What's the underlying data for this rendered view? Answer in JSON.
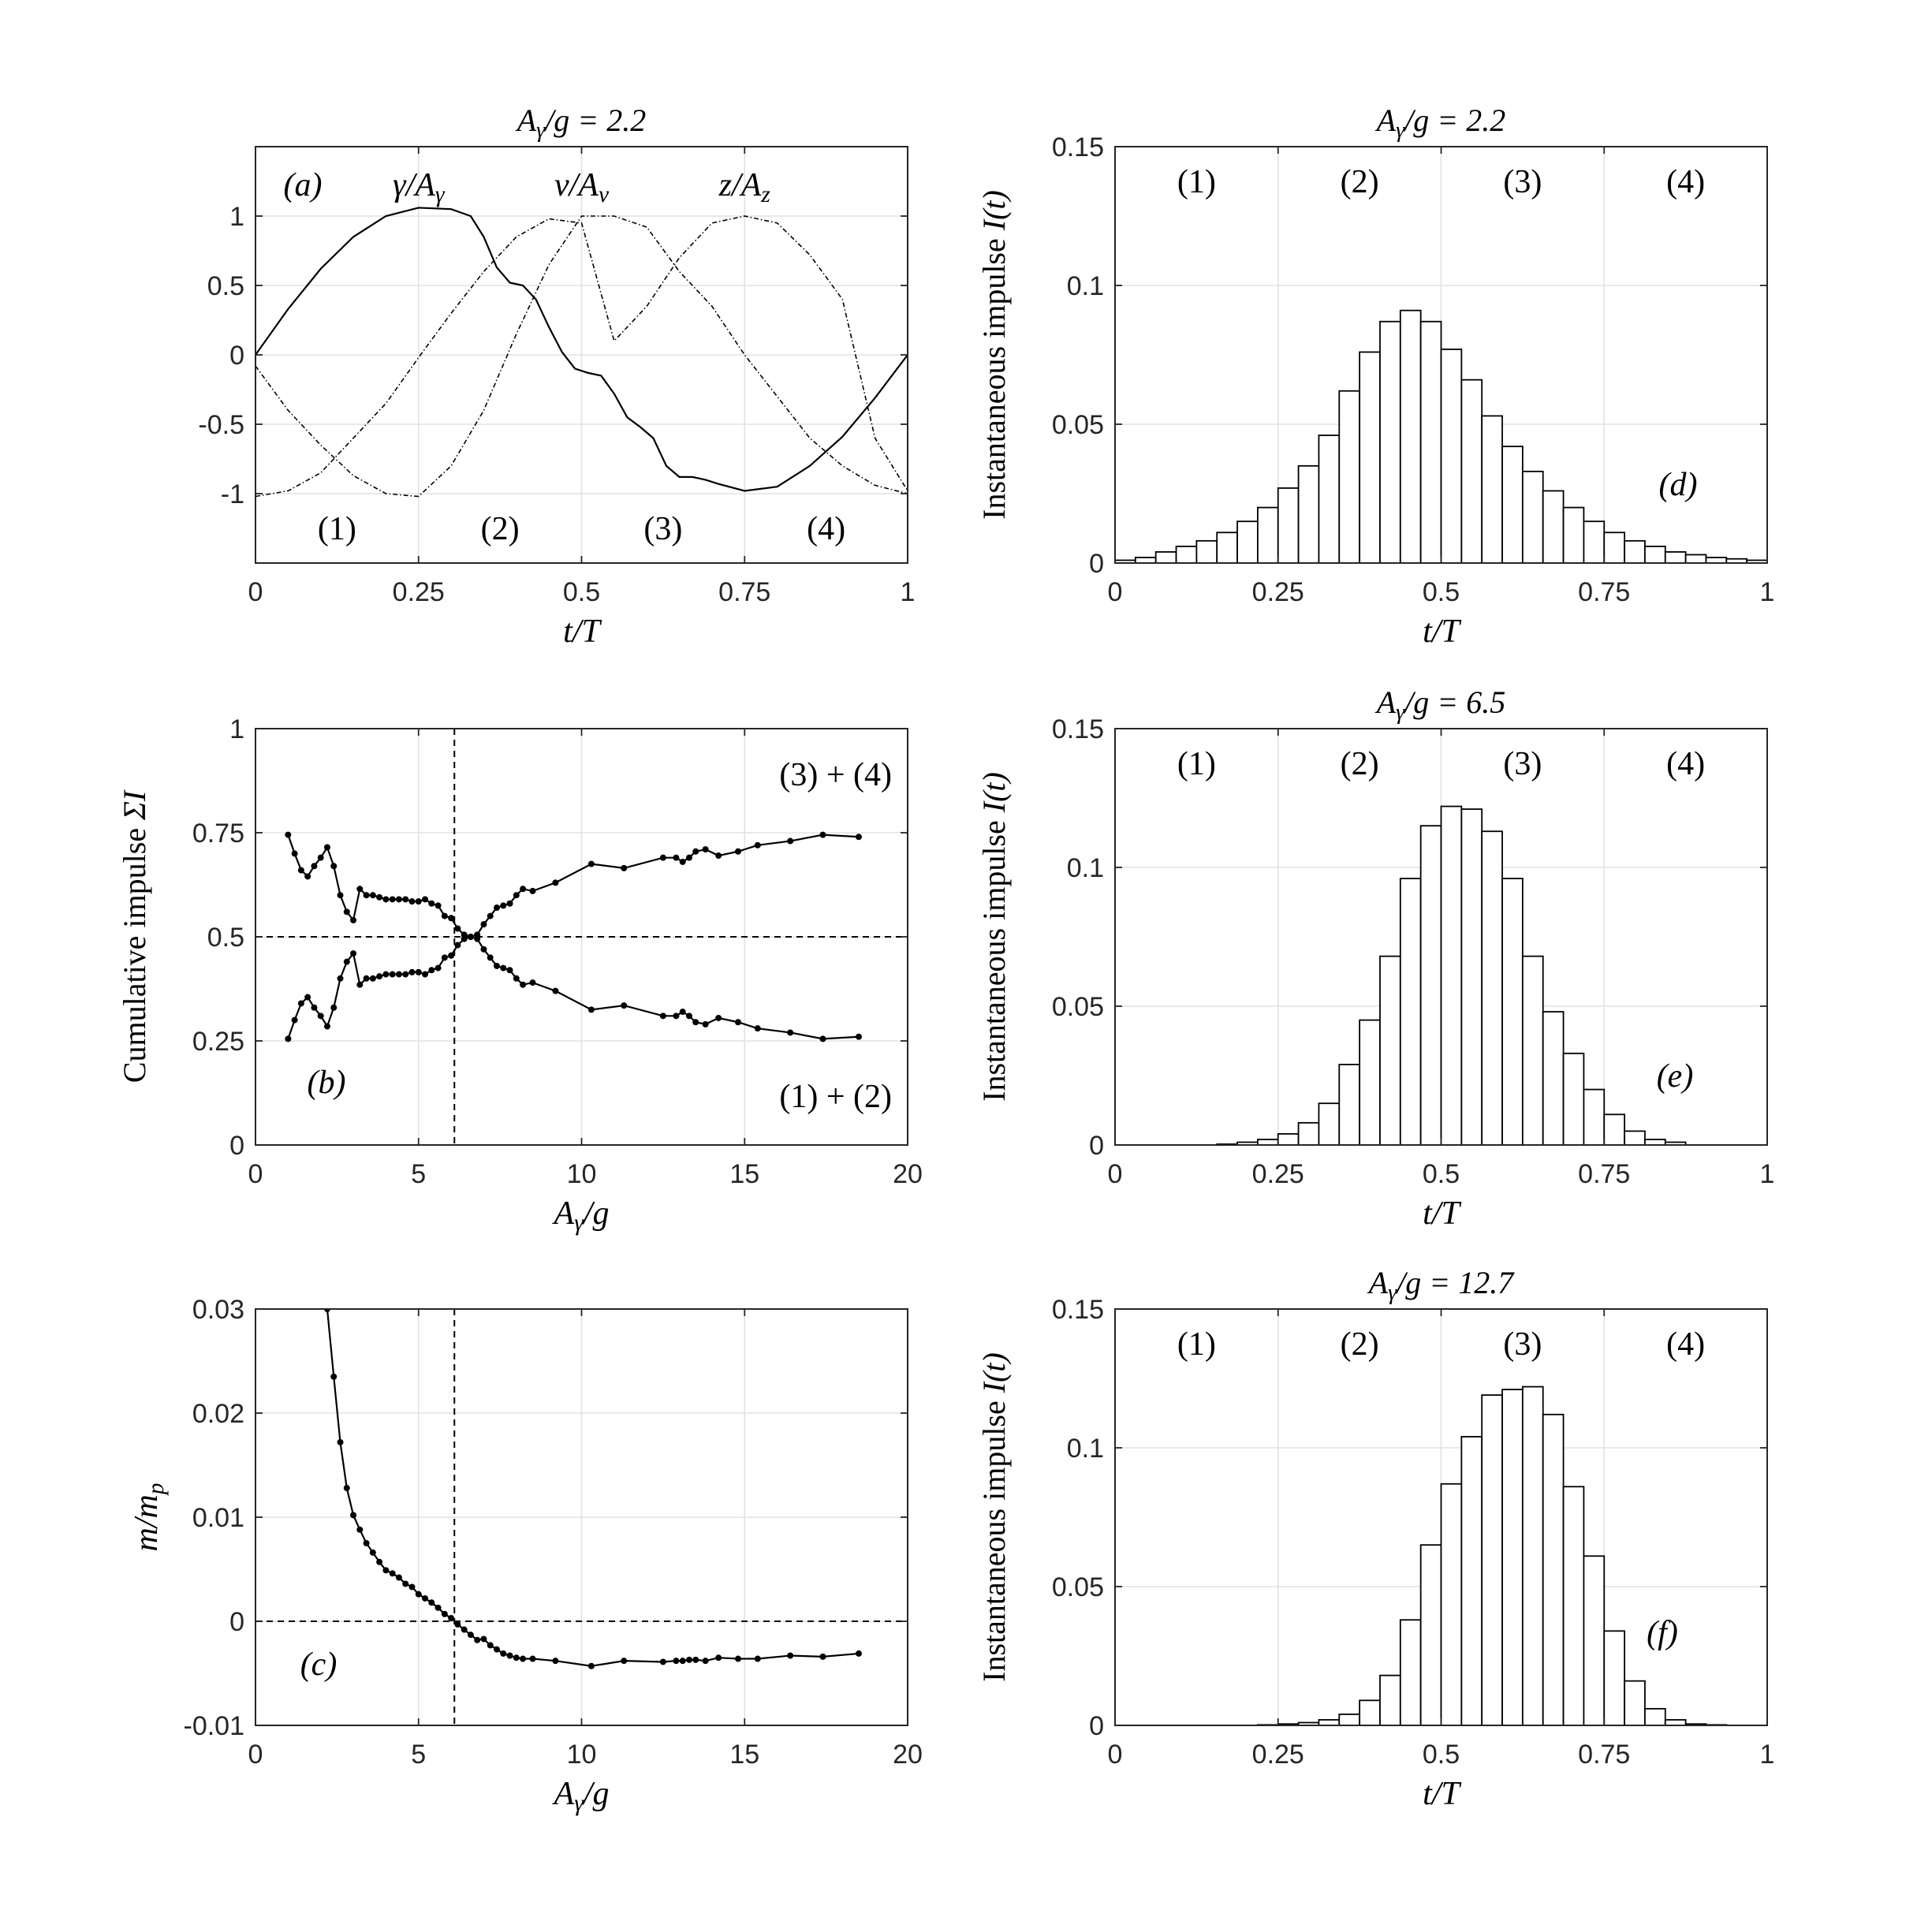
{
  "chart_data": [
    {
      "id": "a",
      "type": "line",
      "title": "A_γ/g = 2.2",
      "xlabel": "t/T",
      "ylabel": "",
      "xlim": [
        0,
        1
      ],
      "ylim": [
        -1.5,
        1.5
      ],
      "xticks": [
        0,
        0.25,
        0.5,
        0.75,
        1
      ],
      "xtick_labels": [
        "0",
        "0.25",
        "0.5",
        "0.75",
        "1"
      ],
      "yticks": [
        -1,
        -0.5,
        0,
        0.5,
        1
      ],
      "ytick_labels": [
        "-1",
        "-0.5",
        "0",
        "0.5",
        "1"
      ],
      "grid": true,
      "panel_label": "(a)",
      "phase_labels": [
        "(1)",
        "(2)",
        "(3)",
        "(4)"
      ],
      "series": [
        {
          "name": "γ/A_γ",
          "style": "solid",
          "x": [
            0,
            0.05,
            0.1,
            0.15,
            0.2,
            0.25,
            0.3,
            0.33,
            0.35,
            0.37,
            0.39,
            0.41,
            0.43,
            0.45,
            0.47,
            0.49,
            0.51,
            0.53,
            0.55,
            0.57,
            0.59,
            0.61,
            0.63,
            0.65,
            0.67,
            0.69,
            0.71,
            0.75,
            0.8,
            0.85,
            0.9,
            0.95,
            1
          ],
          "y": [
            0,
            0.33,
            0.62,
            0.85,
            1.0,
            1.06,
            1.05,
            1.0,
            0.85,
            0.63,
            0.52,
            0.5,
            0.4,
            0.2,
            0.02,
            -0.1,
            -0.13,
            -0.15,
            -0.28,
            -0.45,
            -0.52,
            -0.6,
            -0.8,
            -0.88,
            -0.88,
            -0.9,
            -0.93,
            -0.98,
            -0.95,
            -0.8,
            -0.59,
            -0.31,
            0
          ]
        },
        {
          "name": "v/A_v",
          "style": "dashdot",
          "x": [
            0,
            0.05,
            0.1,
            0.15,
            0.2,
            0.25,
            0.3,
            0.35,
            0.4,
            0.45,
            0.5,
            0.55,
            0.6,
            0.65,
            0.7,
            0.75,
            0.8,
            0.85,
            0.9,
            0.95,
            1
          ],
          "y": [
            -0.08,
            -0.4,
            -0.65,
            -0.87,
            -1.0,
            -1.02,
            -0.8,
            -0.4,
            0.15,
            0.65,
            1.0,
            1.0,
            0.92,
            0.6,
            0.35,
            0.0,
            -0.3,
            -0.6,
            -0.8,
            -0.94,
            -1.0
          ]
        },
        {
          "name": "z/A_z",
          "style": "dashdot",
          "x": [
            0,
            0.05,
            0.1,
            0.15,
            0.2,
            0.25,
            0.3,
            0.35,
            0.4,
            0.45,
            0.5,
            0.55,
            0.6,
            0.65,
            0.7,
            0.75,
            0.8,
            0.85,
            0.9,
            0.95,
            1
          ],
          "y": [
            -1.02,
            -0.98,
            -0.85,
            -0.6,
            -0.35,
            -0.02,
            0.3,
            0.6,
            0.85,
            0.98,
            0.95,
            0.1,
            0.35,
            0.7,
            0.95,
            1.0,
            0.95,
            0.72,
            0.4,
            -0.6,
            -0.98
          ]
        }
      ]
    },
    {
      "id": "d",
      "type": "bar",
      "title": "A_γ/g = 2.2",
      "xlabel": "t/T",
      "ylabel": "Instantaneous impulse I(t)",
      "xlim": [
        0,
        1
      ],
      "ylim": [
        0,
        0.15
      ],
      "xticks": [
        0,
        0.25,
        0.5,
        0.75,
        1
      ],
      "xtick_labels": [
        "0",
        "0.25",
        "0.5",
        "0.75",
        "1"
      ],
      "yticks": [
        0,
        0.05,
        0.1,
        0.15
      ],
      "ytick_labels": [
        "0",
        "0.05",
        "0.1",
        "0.15"
      ],
      "grid": true,
      "panel_label": "(d)",
      "phase_labels": [
        "(1)",
        "(2)",
        "(3)",
        "(4)"
      ],
      "bin_width": 0.03125,
      "values": [
        0.001,
        0.002,
        0.004,
        0.006,
        0.008,
        0.011,
        0.015,
        0.02,
        0.027,
        0.035,
        0.046,
        0.062,
        0.076,
        0.087,
        0.091,
        0.087,
        0.077,
        0.066,
        0.053,
        0.042,
        0.033,
        0.026,
        0.02,
        0.015,
        0.011,
        0.008,
        0.006,
        0.004,
        0.003,
        0.002,
        0.0015,
        0.001
      ]
    },
    {
      "id": "b",
      "type": "line",
      "title": "",
      "xlabel": "A_γ/g",
      "ylabel": "Cumulative impulse ΣI",
      "xlim": [
        0,
        20
      ],
      "ylim": [
        0,
        1
      ],
      "xticks": [
        0,
        5,
        10,
        15,
        20
      ],
      "xtick_labels": [
        "0",
        "5",
        "10",
        "15",
        "20"
      ],
      "yticks": [
        0,
        0.25,
        0.5,
        0.75,
        1
      ],
      "ytick_labels": [
        "0",
        "0.25",
        "0.5",
        "0.75",
        "1"
      ],
      "grid": true,
      "panel_label": "(b)",
      "reference_lines": {
        "x": 6.1,
        "y": 0.5
      },
      "annotations": [
        "(3) + (4)",
        "(1) + (2)"
      ],
      "series": [
        {
          "name": "(3) + (4)",
          "x": [
            1.0,
            1.2,
            1.4,
            1.6,
            1.8,
            2.0,
            2.2,
            2.4,
            2.6,
            2.8,
            3.0,
            3.2,
            3.4,
            3.6,
            3.8,
            4.0,
            4.2,
            4.4,
            4.6,
            4.8,
            5.0,
            5.2,
            5.4,
            5.6,
            5.8,
            6.0,
            6.2,
            6.4,
            6.6,
            6.8,
            7.0,
            7.2,
            7.4,
            7.6,
            7.8,
            8.0,
            8.2,
            8.5,
            9.2,
            10.3,
            11.3,
            12.5,
            12.9,
            13.1,
            13.3,
            13.5,
            13.8,
            14.2,
            14.8,
            15.4,
            16.4,
            17.4,
            18.5
          ],
          "y": [
            0.745,
            0.7,
            0.66,
            0.645,
            0.67,
            0.69,
            0.715,
            0.67,
            0.6,
            0.56,
            0.54,
            0.615,
            0.6,
            0.6,
            0.595,
            0.59,
            0.59,
            0.59,
            0.59,
            0.585,
            0.585,
            0.59,
            0.58,
            0.575,
            0.55,
            0.545,
            0.52,
            0.505,
            0.5,
            0.505,
            0.53,
            0.55,
            0.57,
            0.575,
            0.58,
            0.6,
            0.615,
            0.61,
            0.63,
            0.675,
            0.665,
            0.69,
            0.69,
            0.68,
            0.69,
            0.705,
            0.71,
            0.695,
            0.705,
            0.72,
            0.73,
            0.745,
            0.74
          ]
        },
        {
          "name": "(1) + (2)",
          "x": [
            1.0,
            1.2,
            1.4,
            1.6,
            1.8,
            2.0,
            2.2,
            2.4,
            2.6,
            2.8,
            3.0,
            3.2,
            3.4,
            3.6,
            3.8,
            4.0,
            4.2,
            4.4,
            4.6,
            4.8,
            5.0,
            5.2,
            5.4,
            5.6,
            5.8,
            6.0,
            6.2,
            6.4,
            6.6,
            6.8,
            7.0,
            7.2,
            7.4,
            7.6,
            7.8,
            8.0,
            8.2,
            8.5,
            9.2,
            10.3,
            11.3,
            12.5,
            12.9,
            13.1,
            13.3,
            13.5,
            13.8,
            14.2,
            14.8,
            15.4,
            16.4,
            17.4,
            18.5
          ],
          "y": [
            0.255,
            0.3,
            0.34,
            0.355,
            0.33,
            0.31,
            0.285,
            0.33,
            0.4,
            0.44,
            0.46,
            0.385,
            0.4,
            0.4,
            0.405,
            0.41,
            0.41,
            0.41,
            0.41,
            0.415,
            0.415,
            0.41,
            0.42,
            0.425,
            0.45,
            0.455,
            0.48,
            0.495,
            0.5,
            0.495,
            0.47,
            0.45,
            0.43,
            0.425,
            0.42,
            0.4,
            0.385,
            0.39,
            0.37,
            0.325,
            0.335,
            0.31,
            0.31,
            0.32,
            0.31,
            0.295,
            0.29,
            0.305,
            0.295,
            0.28,
            0.27,
            0.255,
            0.26
          ]
        }
      ]
    },
    {
      "id": "e",
      "type": "bar",
      "title": "A_γ/g = 6.5",
      "xlabel": "t/T",
      "ylabel": "Instantaneous impulse I(t)",
      "xlim": [
        0,
        1
      ],
      "ylim": [
        0,
        0.15
      ],
      "xticks": [
        0,
        0.25,
        0.5,
        0.75,
        1
      ],
      "xtick_labels": [
        "0",
        "0.25",
        "0.5",
        "0.75",
        "1"
      ],
      "yticks": [
        0,
        0.05,
        0.1,
        0.15
      ],
      "ytick_labels": [
        "0",
        "0.05",
        "0.1",
        "0.15"
      ],
      "grid": true,
      "panel_label": "(e)",
      "phase_labels": [
        "(1)",
        "(2)",
        "(3)",
        "(4)"
      ],
      "bin_width": 0.03125,
      "values": [
        0,
        0,
        0,
        0,
        0,
        0.0003,
        0.001,
        0.002,
        0.004,
        0.008,
        0.015,
        0.029,
        0.045,
        0.068,
        0.096,
        0.115,
        0.122,
        0.121,
        0.113,
        0.096,
        0.068,
        0.048,
        0.033,
        0.02,
        0.011,
        0.005,
        0.002,
        0.001,
        0,
        0,
        0,
        0
      ]
    },
    {
      "id": "c",
      "type": "line",
      "title": "",
      "xlabel": "A_γ/g",
      "ylabel": "m/m_p",
      "xlim": [
        0,
        20
      ],
      "ylim": [
        -0.01,
        0.03
      ],
      "xticks": [
        0,
        5,
        10,
        15,
        20
      ],
      "xtick_labels": [
        "0",
        "5",
        "10",
        "15",
        "20"
      ],
      "yticks": [
        -0.01,
        0,
        0.01,
        0.02,
        0.03
      ],
      "ytick_labels": [
        "-0.01",
        "0",
        "0.01",
        "0.02",
        "0.03"
      ],
      "grid": true,
      "panel_label": "(c)",
      "reference_lines": {
        "x": 6.1,
        "y": 0
      },
      "series": [
        {
          "name": "m/m_p",
          "x": [
            2.2,
            2.4,
            2.6,
            2.8,
            3.0,
            3.2,
            3.4,
            3.6,
            3.8,
            4.0,
            4.2,
            4.4,
            4.6,
            4.8,
            5.0,
            5.2,
            5.4,
            5.6,
            5.8,
            6.0,
            6.2,
            6.4,
            6.6,
            6.8,
            7.0,
            7.2,
            7.4,
            7.6,
            7.8,
            8.0,
            8.2,
            8.5,
            9.2,
            10.3,
            11.3,
            12.5,
            12.9,
            13.1,
            13.3,
            13.5,
            13.8,
            14.2,
            14.8,
            15.4,
            16.4,
            17.4,
            18.5
          ],
          "y": [
            0.03,
            0.0235,
            0.0172,
            0.0128,
            0.0102,
            0.0088,
            0.0075,
            0.0066,
            0.0057,
            0.0049,
            0.0046,
            0.0042,
            0.0036,
            0.0033,
            0.0026,
            0.0022,
            0.0018,
            0.0013,
            0.0007,
            0.0003,
            -0.0003,
            -0.0008,
            -0.0013,
            -0.0018,
            -0.0017,
            -0.0023,
            -0.0027,
            -0.0031,
            -0.0033,
            -0.0035,
            -0.0036,
            -0.0036,
            -0.0038,
            -0.0043,
            -0.0038,
            -0.0039,
            -0.0038,
            -0.0038,
            -0.0037,
            -0.0037,
            -0.0038,
            -0.0035,
            -0.0036,
            -0.0036,
            -0.0033,
            -0.0034,
            -0.0031
          ]
        }
      ]
    },
    {
      "id": "f",
      "type": "bar",
      "title": "A_γ/g = 12.7",
      "xlabel": "t/T",
      "ylabel": "Instantaneous impulse I(t)",
      "xlim": [
        0,
        1
      ],
      "ylim": [
        0,
        0.15
      ],
      "xticks": [
        0,
        0.25,
        0.5,
        0.75,
        1
      ],
      "xtick_labels": [
        "0",
        "0.25",
        "0.5",
        "0.75",
        "1"
      ],
      "yticks": [
        0,
        0.05,
        0.1,
        0.15
      ],
      "ytick_labels": [
        "0",
        "0.05",
        "0.1",
        "0.15"
      ],
      "grid": true,
      "panel_label": "(f)",
      "phase_labels": [
        "(1)",
        "(2)",
        "(3)",
        "(4)"
      ],
      "bin_width": 0.03125,
      "values": [
        0,
        0,
        0,
        0,
        0,
        0,
        0,
        0.0002,
        0.0005,
        0.001,
        0.002,
        0.004,
        0.009,
        0.018,
        0.038,
        0.065,
        0.087,
        0.104,
        0.119,
        0.121,
        0.122,
        0.112,
        0.086,
        0.061,
        0.034,
        0.016,
        0.006,
        0.002,
        0.0005,
        0.0002,
        0,
        0
      ]
    }
  ]
}
